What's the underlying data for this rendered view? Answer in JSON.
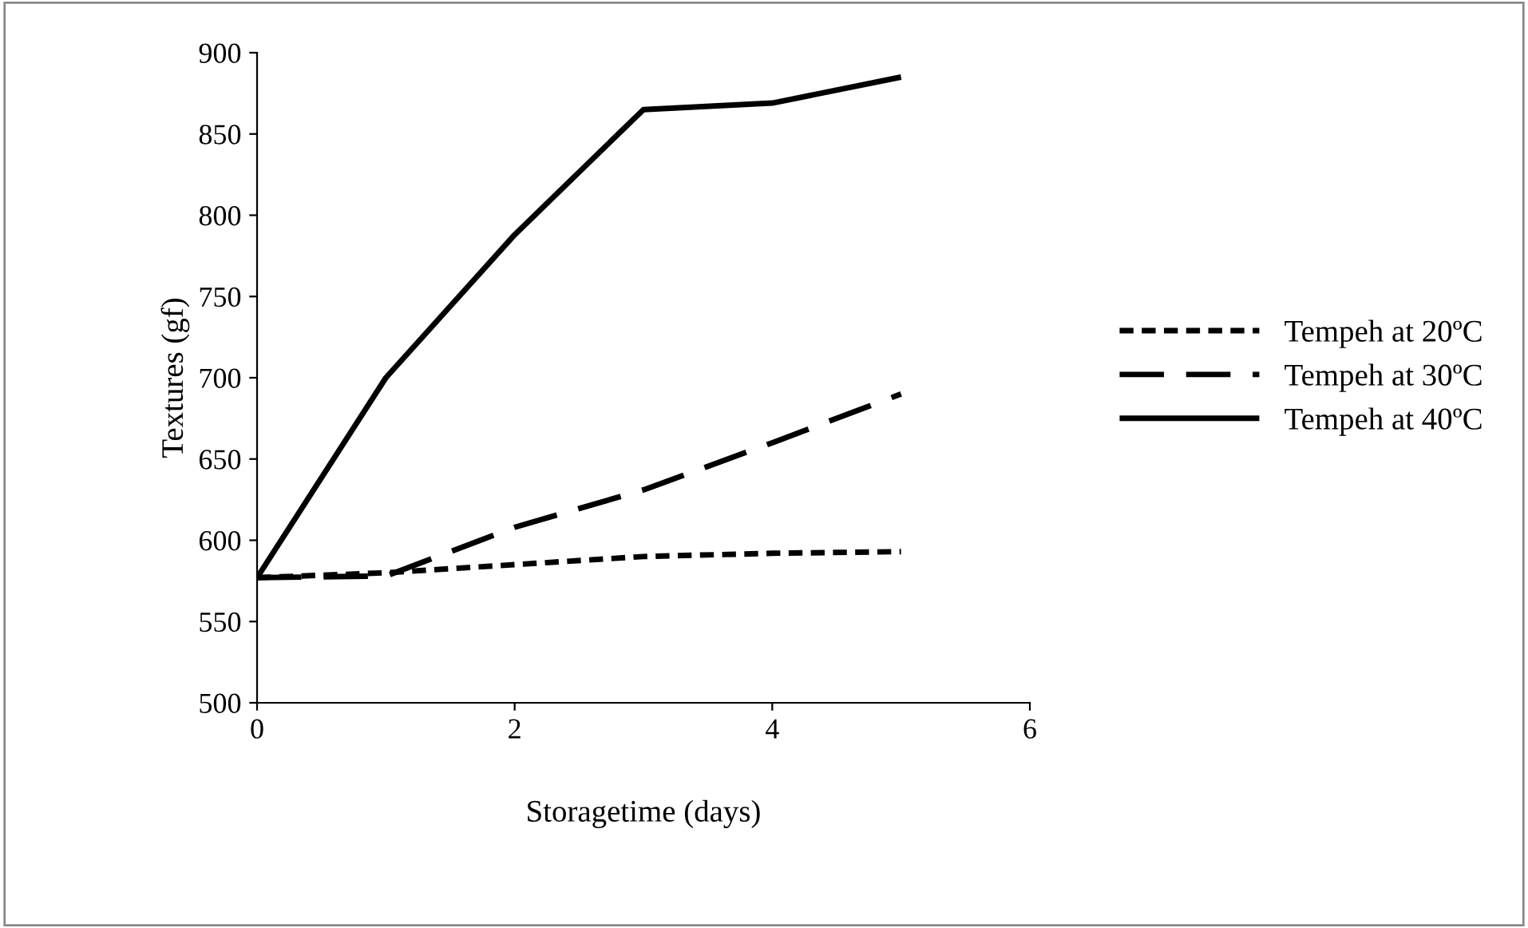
{
  "chart_data": {
    "type": "line",
    "xlabel": "Storagetime (days)",
    "ylabel": "Textures (gf)",
    "x": [
      0,
      1,
      2,
      3,
      4,
      5
    ],
    "series": [
      {
        "name": "Tempeh at 20ºC",
        "color": "#000000",
        "line_style": "dotted",
        "values": [
          577,
          580,
          585,
          590,
          592,
          593
        ]
      },
      {
        "name": "Tempeh at 30ºC",
        "color": "#000000",
        "line_style": "dashed",
        "values": [
          577,
          578,
          608,
          631,
          660,
          690
        ]
      },
      {
        "name": "Tempeh at 40ºC",
        "color": "#000000",
        "line_style": "solid",
        "values": [
          577,
          700,
          788,
          865,
          869,
          885
        ]
      }
    ],
    "xlim": [
      0,
      6
    ],
    "xticks": [
      0,
      2,
      4,
      6
    ],
    "ylim": [
      500,
      900
    ],
    "yticks": [
      500,
      550,
      600,
      650,
      700,
      750,
      800,
      850,
      900
    ],
    "grid": false,
    "legend": "right",
    "marker": "none"
  }
}
